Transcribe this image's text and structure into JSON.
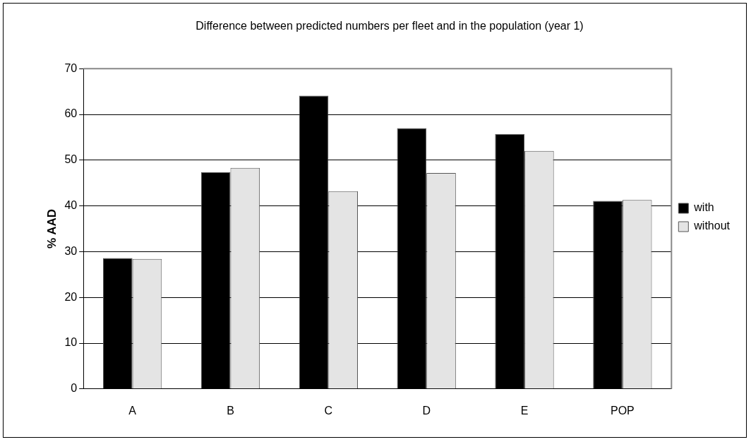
{
  "chart_data": {
    "type": "bar",
    "title": "Difference between predicted numbers per fleet and in the population (year 1)",
    "ylabel": "% AAD",
    "categories": [
      "A",
      "B",
      "C",
      "D",
      "E",
      "POP"
    ],
    "series": [
      {
        "name": "with",
        "color": "#000000",
        "values": [
          28.6,
          47.4,
          64.1,
          57.0,
          55.7,
          41.1
        ]
      },
      {
        "name": "without",
        "color": "#e4e4e4",
        "values": [
          28.4,
          48.3,
          43.2,
          47.2,
          52.0,
          41.3
        ]
      }
    ],
    "ylim": [
      0,
      70
    ],
    "yticks": [
      0,
      10,
      20,
      30,
      40,
      50,
      60,
      70
    ],
    "grid": "y",
    "legend": "right"
  }
}
